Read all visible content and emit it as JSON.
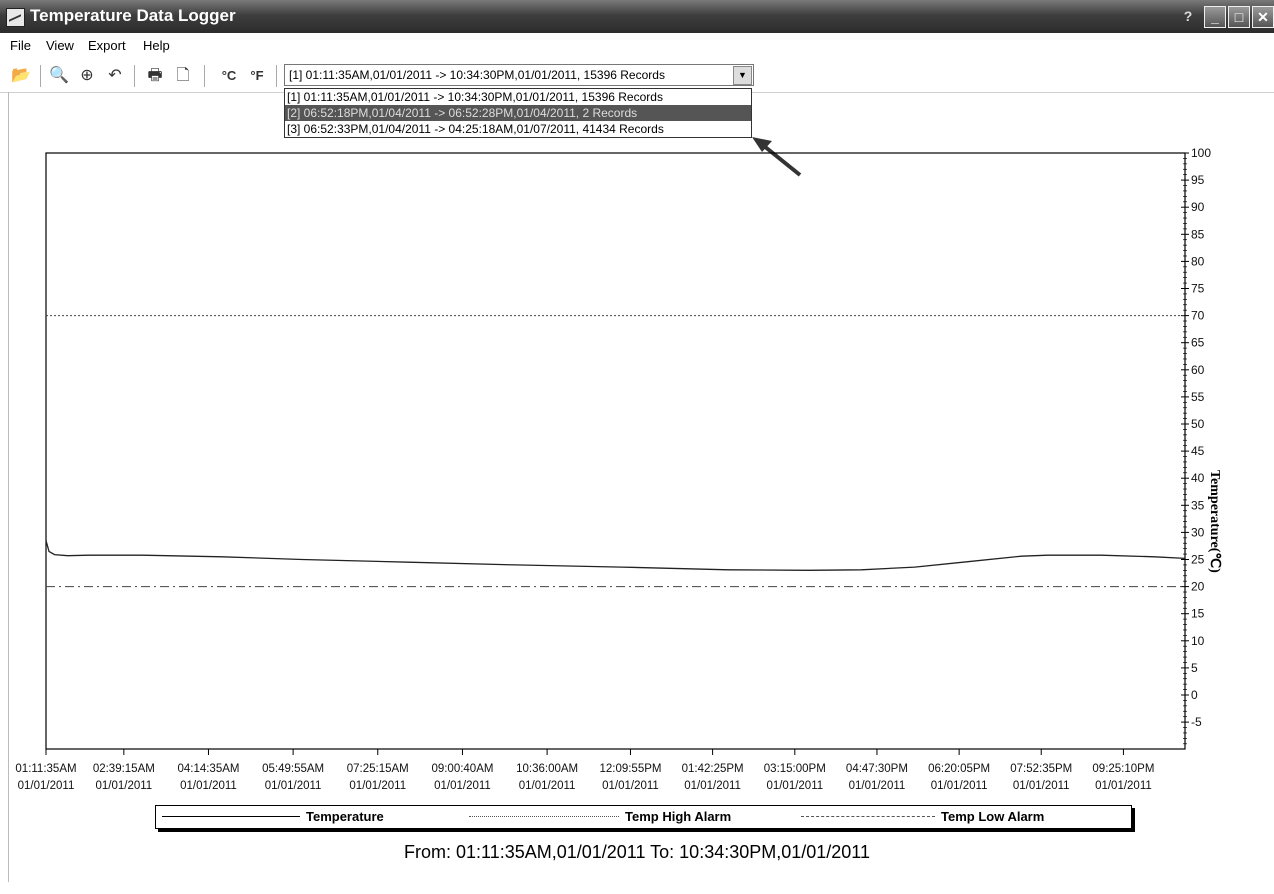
{
  "window": {
    "title": "Temperature Data Logger",
    "help_glyph": "?"
  },
  "menu": [
    "File",
    "View",
    "Export",
    "Help"
  ],
  "toolbar": {
    "icons": [
      "open-icon",
      "zoom-out-icon",
      "zoom-in-icon",
      "undo-zoom-icon",
      "print-icon",
      "print-preview-icon",
      "celsius-icon",
      "fahrenheit-icon"
    ],
    "celsius_label": "°C",
    "fahrenheit_label": "°F"
  },
  "dataset_select": {
    "selected": "[1] 01:11:35AM,01/01/2011 -> 10:34:30PM,01/01/2011, 15396 Records",
    "options": [
      "[1] 01:11:35AM,01/01/2011 -> 10:34:30PM,01/01/2011, 15396 Records",
      "[2] 06:52:18PM,01/04/2011 -> 06:52:28PM,01/04/2011, 2 Records",
      "[3] 06:52:33PM,01/04/2011 -> 04:25:18AM,01/07/2011, 41434 Records"
    ],
    "highlighted_index": 1
  },
  "chart_data": {
    "type": "line",
    "ylabel": "Temperature(℃)",
    "ylim": [
      -10,
      100
    ],
    "yticks": [
      100,
      95,
      90,
      85,
      80,
      75,
      70,
      65,
      60,
      55,
      50,
      45,
      40,
      35,
      30,
      25,
      20,
      15,
      10,
      5,
      0,
      -5
    ],
    "ytick_labels": [
      "100",
      "95",
      "90",
      "85",
      "80",
      "75",
      "70",
      "65",
      "60",
      "55",
      "50",
      "45",
      "40",
      "35",
      "30",
      "25",
      "20",
      "15",
      "10",
      "5",
      "0",
      "-5"
    ],
    "x_tick_labels": [
      [
        "01:11:35AM",
        "01/01/2011"
      ],
      [
        "02:39:15AM",
        "01/01/2011"
      ],
      [
        "04:14:35AM",
        "01/01/2011"
      ],
      [
        "05:49:55AM",
        "01/01/2011"
      ],
      [
        "07:25:15AM",
        "01/01/2011"
      ],
      [
        "09:00:40AM",
        "01/01/2011"
      ],
      [
        "10:36:00AM",
        "01/01/2011"
      ],
      [
        "12:09:55PM",
        "01/01/2011"
      ],
      [
        "01:42:25PM",
        "01/01/2011"
      ],
      [
        "03:15:00PM",
        "01/01/2011"
      ],
      [
        "04:47:30PM",
        "01/01/2011"
      ],
      [
        "06:20:05PM",
        "01/01/2011"
      ],
      [
        "07:52:35PM",
        "01/01/2011"
      ],
      [
        "09:25:10PM",
        "01/01/2011"
      ]
    ],
    "x_tick_hours": [
      1.193,
      2.654,
      4.243,
      5.832,
      7.421,
      9.011,
      10.6,
      12.165,
      13.707,
      15.25,
      16.792,
      18.335,
      19.876,
      21.419
    ],
    "xlim_hours": [
      1.193,
      22.575
    ],
    "series": [
      {
        "name": "Temperature",
        "style": "solid",
        "x_hours": [
          1.193,
          1.25,
          1.35,
          1.6,
          2.0,
          3.0,
          4.5,
          6.0,
          8.0,
          10.0,
          12.0,
          14.0,
          15.5,
          16.5,
          17.5,
          18.5,
          19.5,
          20.0,
          21.0,
          22.0,
          22.575
        ],
        "y": [
          28.5,
          26.5,
          25.9,
          25.7,
          25.8,
          25.8,
          25.5,
          25.0,
          24.5,
          24.0,
          23.6,
          23.1,
          23.0,
          23.1,
          23.6,
          24.6,
          25.6,
          25.8,
          25.8,
          25.5,
          25.2
        ]
      },
      {
        "name": "Temp High Alarm",
        "style": "dotted",
        "value": 70
      },
      {
        "name": "Temp Low Alarm",
        "style": "dash-dot",
        "value": 20
      }
    ],
    "grid": false,
    "legend_position": "bottom"
  },
  "footer": {
    "range_text": "From: 01:11:35AM,01/01/2011   To: 10:34:30PM,01/01/2011"
  }
}
